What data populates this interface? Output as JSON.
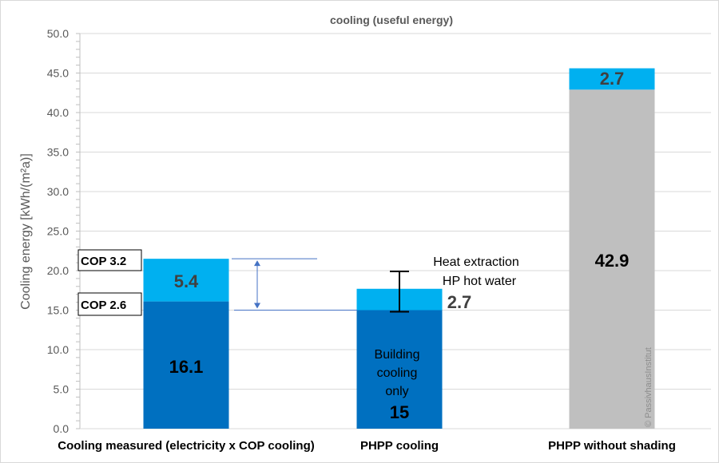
{
  "chart_data": {
    "type": "bar",
    "stacked": true,
    "title": "cooling (useful energy)",
    "xlabel": "",
    "ylabel": "Cooling energy [kWh/(m²a)]",
    "ylim": [
      0,
      50
    ],
    "ytick_step": 5,
    "ytick_labels": [
      "0.0",
      "5.0",
      "10.0",
      "15.0",
      "20.0",
      "25.0",
      "30.0",
      "35.0",
      "40.0",
      "45.0",
      "50.0"
    ],
    "grid": true,
    "categories": [
      "Cooling measured (electricity x COP cooling)",
      "PHPP cooling",
      "PHPP without shading"
    ],
    "series": [
      {
        "values": [
          16.1,
          15,
          42.9
        ],
        "labels": [
          "16.1",
          "15",
          "42.9"
        ],
        "colors": [
          "#0070c0",
          "#0070c0",
          "#bfbfbf"
        ]
      },
      {
        "values": [
          5.4,
          2.7,
          2.7
        ],
        "labels": [
          "5.4",
          "2.7",
          "2.7"
        ],
        "colors": [
          "#00b0f0",
          "#00b0f0",
          "#00b0f0"
        ]
      }
    ],
    "annotations": {
      "cop_high": "COP 3.2",
      "cop_low": "COP 2.6",
      "heat_extraction_line1": "Heat extraction",
      "heat_extraction_line2": "HP hot water",
      "building_cooling_lines": [
        "Building",
        "cooling",
        "only"
      ],
      "error_bar": {
        "category": "PHPP cooling",
        "low": 14.8,
        "high": 19.9
      }
    },
    "watermark": "© PassivhausInstitut"
  }
}
